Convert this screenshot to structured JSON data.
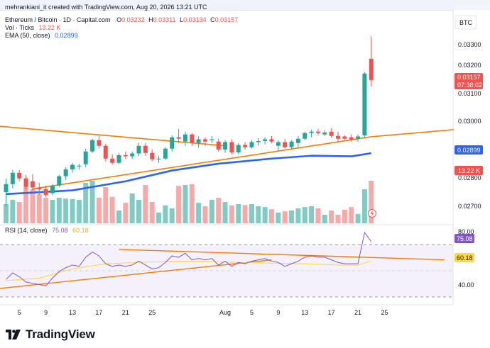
{
  "header": {
    "caption": "mehrankiani_it created with TradingView.com, Aug 20, 2026 13:21 UTC"
  },
  "legend": {
    "symbol": "Ethereum / Bitcoin · 1D · Capital.com",
    "o_label": "O",
    "o_value": "0.03232",
    "h_label": "H",
    "h_value": "0.03311",
    "l_label": "L",
    "l_value": "0.03134",
    "c_label": "C",
    "c_value": "0.03157",
    "vol_label": "Vol · Ticks",
    "vol_value": "13.22 K",
    "ema_label": "EMA (50, close)",
    "ema_value": "0.02899",
    "rsi_label": "RSI (14, close)",
    "rsi_value": "75.08",
    "rsi_ma_value": "60.18"
  },
  "price_axis": {
    "currency_button": "BTC",
    "ticks": [
      "0.03300",
      "0.03200",
      "0.03100",
      "0.03000",
      "0.02800",
      "0.02700"
    ],
    "last_price": "0.03157",
    "countdown": "07:38:02",
    "ema_tag": "0.02899",
    "volume_tag": "13.22 K"
  },
  "rsi_axis": {
    "ticks": [
      "80.00",
      "40.00"
    ],
    "rsi_tag": "75.08",
    "ma_tag": "60.18"
  },
  "time_axis": {
    "labels": [
      "5",
      "9",
      "13",
      "17",
      "21",
      "25",
      "Aug",
      "5",
      "9",
      "13",
      "17",
      "21",
      "25"
    ]
  },
  "brand": {
    "name": "TradingView"
  },
  "colors": {
    "up": "#26a69a",
    "down": "#ef5350",
    "ema": "#2962ff",
    "trendline": "#f57c00",
    "rsi": "#7e57c2",
    "rsi_ma": "#fdd835",
    "vol_up": "#80cbc4",
    "vol_down": "#f7a9a7"
  },
  "chart_data": {
    "type": "candlestick",
    "y_range": [
      0.02647,
      0.03404
    ],
    "rsi_range": [
      26.5,
      88
    ],
    "x_labels": [
      "5",
      "9",
      "13",
      "17",
      "21",
      "25",
      "Aug",
      "5",
      "9",
      "13",
      "17",
      "21",
      "25"
    ],
    "candles": [
      {
        "o": 0.02762,
        "h": 0.0281,
        "l": 0.0271,
        "c": 0.0279,
        "v": 0.45,
        "r": 46
      },
      {
        "o": 0.0279,
        "h": 0.0284,
        "l": 0.02775,
        "c": 0.0283,
        "v": 0.55,
        "r": 51
      },
      {
        "o": 0.0283,
        "h": 0.0284,
        "l": 0.028,
        "c": 0.0281,
        "v": 0.5,
        "r": 48
      },
      {
        "o": 0.0281,
        "h": 0.02822,
        "l": 0.0277,
        "c": 0.0278,
        "v": 0.85,
        "r": 44
      },
      {
        "o": 0.028,
        "h": 0.02825,
        "l": 0.02768,
        "c": 0.02778,
        "v": 0.8,
        "r": 43
      },
      {
        "o": 0.02778,
        "h": 0.02795,
        "l": 0.02752,
        "c": 0.02772,
        "v": 0.68,
        "r": 42
      },
      {
        "o": 0.02772,
        "h": 0.02785,
        "l": 0.02745,
        "c": 0.02752,
        "v": 0.6,
        "r": 41
      },
      {
        "o": 0.02758,
        "h": 0.0279,
        "l": 0.02752,
        "c": 0.02785,
        "v": 0.55,
        "r": 47
      },
      {
        "o": 0.02785,
        "h": 0.02822,
        "l": 0.0278,
        "c": 0.02818,
        "v": 0.6,
        "r": 52
      },
      {
        "o": 0.02818,
        "h": 0.0285,
        "l": 0.02805,
        "c": 0.02842,
        "v": 0.58,
        "r": 55
      },
      {
        "o": 0.02842,
        "h": 0.02865,
        "l": 0.0283,
        "c": 0.02858,
        "v": 0.57,
        "r": 57
      },
      {
        "o": 0.02852,
        "h": 0.02862,
        "l": 0.0284,
        "c": 0.02855,
        "v": 0.55,
        "r": 56
      },
      {
        "o": 0.0286,
        "h": 0.02915,
        "l": 0.0285,
        "c": 0.02905,
        "v": 0.95,
        "r": 63
      },
      {
        "o": 0.02905,
        "h": 0.0295,
        "l": 0.029,
        "c": 0.02945,
        "v": 1.0,
        "r": 67
      },
      {
        "o": 0.02945,
        "h": 0.0296,
        "l": 0.02915,
        "c": 0.02925,
        "v": 0.6,
        "r": 64
      },
      {
        "o": 0.02925,
        "h": 0.02932,
        "l": 0.0287,
        "c": 0.0288,
        "v": 0.85,
        "r": 58
      },
      {
        "o": 0.0288,
        "h": 0.02895,
        "l": 0.02858,
        "c": 0.02865,
        "v": 0.62,
        "r": 56
      },
      {
        "o": 0.02865,
        "h": 0.029,
        "l": 0.0286,
        "c": 0.02892,
        "v": 0.3,
        "r": 57
      },
      {
        "o": 0.02892,
        "h": 0.02905,
        "l": 0.02878,
        "c": 0.02888,
        "v": 0.48,
        "r": 56
      },
      {
        "o": 0.02888,
        "h": 0.02905,
        "l": 0.02878,
        "c": 0.02898,
        "v": 0.7,
        "r": 57
      },
      {
        "o": 0.02898,
        "h": 0.02935,
        "l": 0.02888,
        "c": 0.02925,
        "v": 0.55,
        "r": 60
      },
      {
        "o": 0.02925,
        "h": 0.02935,
        "l": 0.0289,
        "c": 0.029,
        "v": 0.9,
        "r": 57
      },
      {
        "o": 0.029,
        "h": 0.02912,
        "l": 0.0287,
        "c": 0.02878,
        "v": 0.5,
        "r": 54
      },
      {
        "o": 0.02878,
        "h": 0.0289,
        "l": 0.02865,
        "c": 0.0288,
        "v": 0.25,
        "r": 55
      },
      {
        "o": 0.0288,
        "h": 0.0292,
        "l": 0.02875,
        "c": 0.02915,
        "v": 0.42,
        "r": 59
      },
      {
        "o": 0.02915,
        "h": 0.02962,
        "l": 0.02905,
        "c": 0.02955,
        "v": 0.35,
        "r": 64
      },
      {
        "o": 0.02955,
        "h": 0.02985,
        "l": 0.02935,
        "c": 0.0295,
        "v": 0.88,
        "r": 63
      },
      {
        "o": 0.0294,
        "h": 0.02975,
        "l": 0.02925,
        "c": 0.02965,
        "v": 0.9,
        "r": 66
      },
      {
        "o": 0.02965,
        "h": 0.0297,
        "l": 0.02925,
        "c": 0.02935,
        "v": 0.92,
        "r": 61
      },
      {
        "o": 0.02935,
        "h": 0.02958,
        "l": 0.02918,
        "c": 0.02948,
        "v": 0.48,
        "r": 62
      },
      {
        "o": 0.02948,
        "h": 0.02955,
        "l": 0.02925,
        "c": 0.0294,
        "v": 0.4,
        "r": 61
      },
      {
        "o": 0.02945,
        "h": 0.0296,
        "l": 0.02935,
        "c": 0.02948,
        "v": 0.55,
        "r": 62
      },
      {
        "o": 0.0294,
        "h": 0.0295,
        "l": 0.02905,
        "c": 0.02912,
        "v": 0.6,
        "r": 57
      },
      {
        "o": 0.02912,
        "h": 0.02945,
        "l": 0.029,
        "c": 0.02938,
        "v": 0.5,
        "r": 60
      },
      {
        "o": 0.02938,
        "h": 0.02948,
        "l": 0.02895,
        "c": 0.02902,
        "v": 0.42,
        "r": 56
      },
      {
        "o": 0.02902,
        "h": 0.02935,
        "l": 0.02895,
        "c": 0.02928,
        "v": 0.45,
        "r": 59
      },
      {
        "o": 0.02928,
        "h": 0.02938,
        "l": 0.02912,
        "c": 0.0292,
        "v": 0.43,
        "r": 58
      },
      {
        "o": 0.0292,
        "h": 0.02945,
        "l": 0.02915,
        "c": 0.02938,
        "v": 0.45,
        "r": 60
      },
      {
        "o": 0.02938,
        "h": 0.02952,
        "l": 0.02925,
        "c": 0.02942,
        "v": 0.4,
        "r": 61
      },
      {
        "o": 0.02942,
        "h": 0.02955,
        "l": 0.0293,
        "c": 0.02948,
        "v": 0.38,
        "r": 62
      },
      {
        "o": 0.02948,
        "h": 0.0296,
        "l": 0.02935,
        "c": 0.0294,
        "v": 0.33,
        "r": 60
      },
      {
        "o": 0.02925,
        "h": 0.02945,
        "l": 0.02905,
        "c": 0.02938,
        "v": 0.25,
        "r": 59
      },
      {
        "o": 0.02938,
        "h": 0.0295,
        "l": 0.02915,
        "c": 0.0292,
        "v": 0.28,
        "r": 56
      },
      {
        "o": 0.0292,
        "h": 0.02945,
        "l": 0.02915,
        "c": 0.0294,
        "v": 0.3,
        "r": 58
      },
      {
        "o": 0.02935,
        "h": 0.0296,
        "l": 0.0292,
        "c": 0.0295,
        "v": 0.35,
        "r": 60
      },
      {
        "o": 0.0295,
        "h": 0.02975,
        "l": 0.02945,
        "c": 0.0297,
        "v": 0.38,
        "r": 63
      },
      {
        "o": 0.0297,
        "h": 0.02982,
        "l": 0.02955,
        "c": 0.02975,
        "v": 0.4,
        "r": 64
      },
      {
        "o": 0.02975,
        "h": 0.02985,
        "l": 0.02962,
        "c": 0.0297,
        "v": 0.35,
        "r": 63
      },
      {
        "o": 0.02965,
        "h": 0.0298,
        "l": 0.0296,
        "c": 0.02972,
        "v": 0.2,
        "r": 63
      },
      {
        "o": 0.02975,
        "h": 0.02988,
        "l": 0.02955,
        "c": 0.0296,
        "v": 0.3,
        "r": 61
      },
      {
        "o": 0.0296,
        "h": 0.02975,
        "l": 0.0294,
        "c": 0.0295,
        "v": 0.2,
        "r": 59
      },
      {
        "o": 0.02958,
        "h": 0.02962,
        "l": 0.02945,
        "c": 0.0295,
        "v": 0.32,
        "r": 58
      },
      {
        "o": 0.02955,
        "h": 0.02965,
        "l": 0.0294,
        "c": 0.02948,
        "v": 0.38,
        "r": 58
      },
      {
        "o": 0.0295,
        "h": 0.02965,
        "l": 0.02938,
        "c": 0.02958,
        "v": 0.22,
        "r": 58
      },
      {
        "o": 0.02962,
        "h": 0.03185,
        "l": 0.02955,
        "c": 0.0318,
        "v": 0.8,
        "r": 82
      },
      {
        "o": 0.03232,
        "h": 0.03311,
        "l": 0.03134,
        "c": 0.03157,
        "v": 1.0,
        "r": 75.08
      }
    ],
    "ema": [
      [
        0,
        0.02755
      ],
      [
        10,
        0.02768
      ],
      [
        18,
        0.028
      ],
      [
        25,
        0.02838
      ],
      [
        32,
        0.02862
      ],
      [
        40,
        0.0288
      ],
      [
        46,
        0.0289
      ],
      [
        52,
        0.02888
      ],
      [
        55,
        0.02899
      ]
    ],
    "rsi_ma": [
      [
        0,
        45
      ],
      [
        5,
        47
      ],
      [
        10,
        54
      ],
      [
        15,
        58
      ],
      [
        20,
        59
      ],
      [
        25,
        60
      ],
      [
        30,
        60
      ],
      [
        35,
        59
      ],
      [
        40,
        58.5
      ],
      [
        45,
        58
      ],
      [
        50,
        57
      ],
      [
        53,
        57
      ],
      [
        55,
        60.18
      ]
    ],
    "trendlines": [
      {
        "name": "upper",
        "from": [
          -1,
          0.02994
        ],
        "to": [
          33,
          0.02925
        ]
      },
      {
        "name": "lower",
        "from": [
          4,
          0.02773
        ],
        "to": [
          55,
          0.02957
        ]
      },
      {
        "name": "support",
        "from": [
          55,
          0.02957
        ],
        "to": [
          80,
          0.03007
        ]
      }
    ],
    "rsi_trendlines": [
      {
        "from": [
          17,
          69
        ],
        "to": [
          66,
          61
        ]
      },
      {
        "from": [
          -1,
          39
        ],
        "to": [
          40,
          61
        ]
      }
    ]
  }
}
